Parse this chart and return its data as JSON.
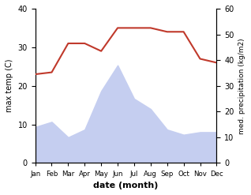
{
  "months": [
    "Jan",
    "Feb",
    "Mar",
    "Apr",
    "May",
    "Jun",
    "Jul",
    "Aug",
    "Sep",
    "Oct",
    "Nov",
    "Dec"
  ],
  "x": [
    1,
    2,
    3,
    4,
    5,
    6,
    7,
    8,
    9,
    10,
    11,
    12
  ],
  "precipitation": [
    14,
    16,
    10,
    13,
    28,
    38,
    25,
    21,
    13,
    11,
    12,
    12
  ],
  "temperature": [
    23,
    23.5,
    31,
    31,
    29,
    35,
    35,
    35,
    34,
    34,
    27,
    26
  ],
  "temp_ylim": [
    0,
    40
  ],
  "precip_ylim": [
    0,
    60
  ],
  "temp_color": "#c0392b",
  "precip_fill_color": "#c5cef0",
  "xlabel": "date (month)",
  "ylabel_left": "max temp (C)",
  "ylabel_right": "med. precipitation (kg/m2)",
  "fig_width": 3.18,
  "fig_height": 2.47,
  "dpi": 100
}
